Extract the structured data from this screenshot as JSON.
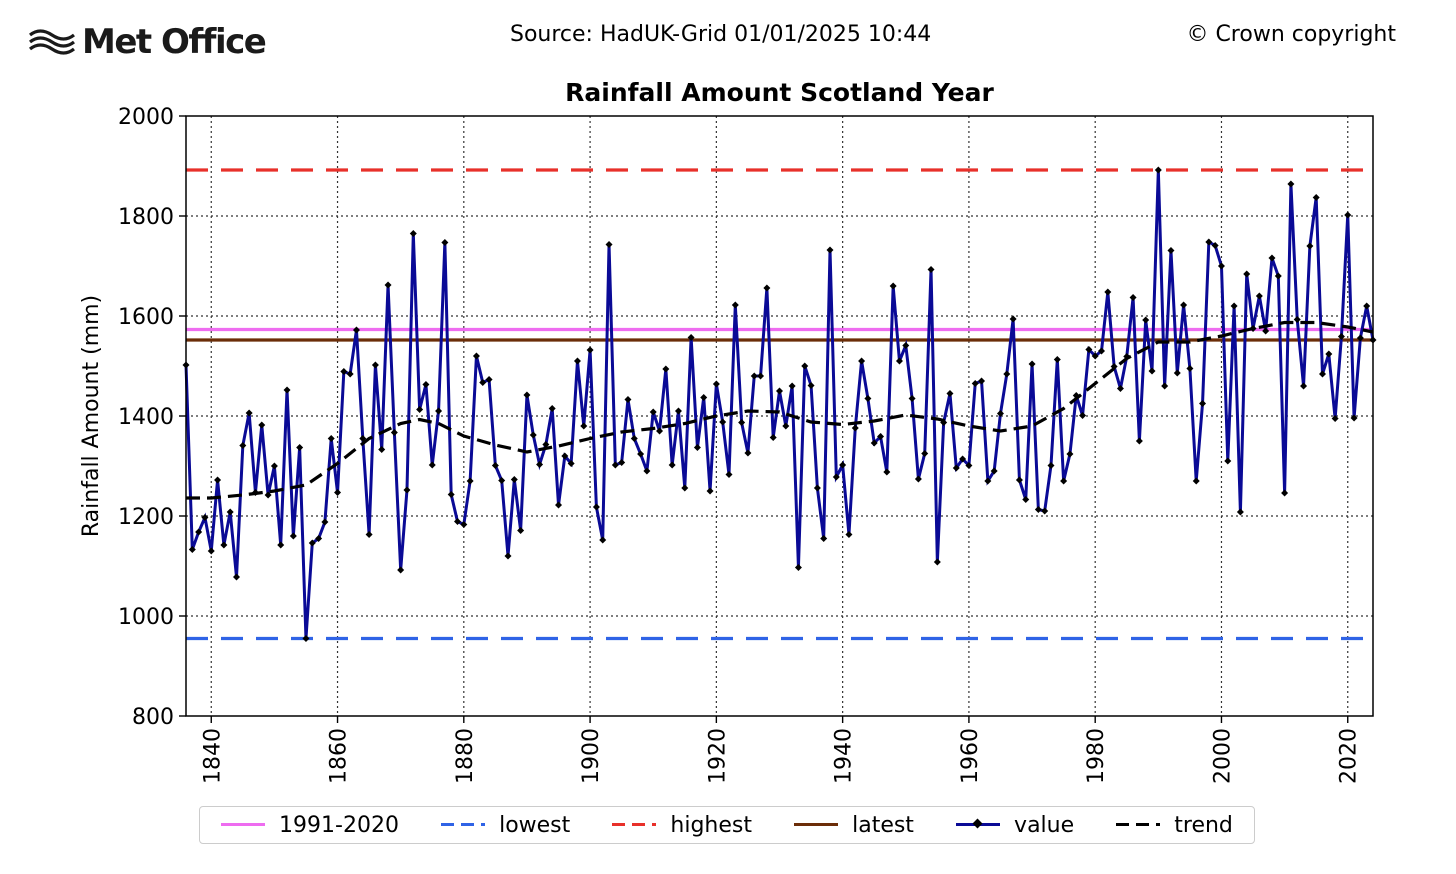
{
  "header": {
    "logo_text": "Met Office",
    "source": "Source: HadUK-Grid 01/01/2025 10:44",
    "copyright": "© Crown copyright"
  },
  "chart_data": {
    "type": "line",
    "title": "Rainfall Amount Scotland Year",
    "xlabel": "",
    "ylabel": "Rainfall Amount (mm)",
    "xlim": [
      1836,
      2024
    ],
    "ylim": [
      800,
      2000
    ],
    "xticks": [
      "1840",
      "1860",
      "1880",
      "1900",
      "1920",
      "1940",
      "1960",
      "1980",
      "2000",
      "2020"
    ],
    "yticks": [
      "800",
      "1000",
      "1200",
      "1400",
      "1600",
      "1800",
      "2000"
    ],
    "grid": true,
    "legend_position": "bottom",
    "reference_lines": [
      {
        "name": "1991-2020",
        "value": 1573,
        "color": "#ee6cf0",
        "style": "solid"
      },
      {
        "name": "lowest",
        "value": 955,
        "color": "#2f63e6",
        "style": "dashed"
      },
      {
        "name": "highest",
        "value": 1892,
        "color": "#e8302a",
        "style": "dashed"
      },
      {
        "name": "latest",
        "value": 1552,
        "color": "#6b2d08",
        "style": "solid"
      }
    ],
    "series": [
      {
        "name": "value",
        "color": "#0a0a96",
        "x": [
          1836,
          1837,
          1838,
          1839,
          1840,
          1841,
          1842,
          1843,
          1844,
          1845,
          1846,
          1847,
          1848,
          1849,
          1850,
          1851,
          1852,
          1853,
          1854,
          1855,
          1856,
          1857,
          1858,
          1859,
          1860,
          1861,
          1862,
          1863,
          1864,
          1865,
          1866,
          1867,
          1868,
          1869,
          1870,
          1871,
          1872,
          1873,
          1874,
          1875,
          1876,
          1877,
          1878,
          1879,
          1880,
          1881,
          1882,
          1883,
          1884,
          1885,
          1886,
          1887,
          1888,
          1889,
          1890,
          1891,
          1892,
          1893,
          1894,
          1895,
          1896,
          1897,
          1898,
          1899,
          1900,
          1901,
          1902,
          1903,
          1904,
          1905,
          1906,
          1907,
          1908,
          1909,
          1910,
          1911,
          1912,
          1913,
          1914,
          1915,
          1916,
          1917,
          1918,
          1919,
          1920,
          1921,
          1922,
          1923,
          1924,
          1925,
          1926,
          1927,
          1928,
          1929,
          1930,
          1931,
          1932,
          1933,
          1934,
          1935,
          1936,
          1937,
          1938,
          1939,
          1940,
          1941,
          1942,
          1943,
          1944,
          1945,
          1946,
          1947,
          1948,
          1949,
          1950,
          1951,
          1952,
          1953,
          1954,
          1955,
          1956,
          1957,
          1958,
          1959,
          1960,
          1961,
          1962,
          1963,
          1964,
          1965,
          1966,
          1967,
          1968,
          1969,
          1970,
          1971,
          1972,
          1973,
          1974,
          1975,
          1976,
          1977,
          1978,
          1979,
          1980,
          1981,
          1982,
          1983,
          1984,
          1985,
          1986,
          1987,
          1988,
          1989,
          1990,
          1991,
          1992,
          1993,
          1994,
          1995,
          1996,
          1997,
          1998,
          1999,
          2000,
          2001,
          2002,
          2003,
          2004,
          2005,
          2006,
          2007,
          2008,
          2009,
          2010,
          2011,
          2012,
          2013,
          2014,
          2015,
          2016,
          2017,
          2018,
          2019,
          2020,
          2021,
          2022,
          2023,
          2024
        ],
        "values": [
          1502,
          1133,
          1168,
          1197,
          1130,
          1272,
          1142,
          1208,
          1078,
          1341,
          1406,
          1247,
          1382,
          1242,
          1300,
          1142,
          1452,
          1160,
          1337,
          955,
          1146,
          1155,
          1188,
          1355,
          1247,
          1489,
          1484,
          1572,
          1355,
          1163,
          1502,
          1333,
          1662,
          1367,
          1092,
          1252,
          1765,
          1413,
          1463,
          1302,
          1410,
          1747,
          1243,
          1189,
          1183,
          1270,
          1520,
          1467,
          1473,
          1301,
          1271,
          1120,
          1273,
          1171,
          1442,
          1362,
          1303,
          1343,
          1415,
          1222,
          1320,
          1305,
          1510,
          1380,
          1532,
          1218,
          1152,
          1743,
          1302,
          1307,
          1433,
          1355,
          1324,
          1290,
          1408,
          1370,
          1494,
          1302,
          1410,
          1256,
          1557,
          1337,
          1437,
          1250,
          1464,
          1388,
          1283,
          1622,
          1387,
          1326,
          1480,
          1480,
          1656,
          1357,
          1450,
          1380,
          1460,
          1097,
          1500,
          1461,
          1256,
          1155,
          1732,
          1278,
          1302,
          1163,
          1376,
          1510,
          1435,
          1346,
          1359,
          1288,
          1660,
          1510,
          1541,
          1435,
          1274,
          1325,
          1693,
          1108,
          1387,
          1445,
          1296,
          1314,
          1301,
          1465,
          1470,
          1270,
          1290,
          1405,
          1484,
          1594,
          1272,
          1233,
          1504,
          1213,
          1210,
          1301,
          1513,
          1270,
          1324,
          1441,
          1401,
          1533,
          1520,
          1530,
          1648,
          1499,
          1455,
          1519,
          1637,
          1350,
          1592,
          1490,
          1892,
          1460,
          1731,
          1486,
          1622,
          1495,
          1270,
          1425,
          1748,
          1741,
          1700,
          1310,
          1620,
          1208,
          1684,
          1575,
          1640,
          1570,
          1716,
          1680,
          1246,
          1864,
          1593,
          1460,
          1740,
          1837,
          1484,
          1524,
          1395,
          1559,
          1802,
          1396,
          1556,
          1620,
          1552
        ]
      },
      {
        "name": "trend",
        "color": "#000000",
        "x": [
          1836,
          1840,
          1845,
          1850,
          1855,
          1860,
          1865,
          1870,
          1873,
          1876,
          1880,
          1885,
          1890,
          1895,
          1900,
          1905,
          1910,
          1915,
          1920,
          1925,
          1930,
          1935,
          1940,
          1945,
          1950,
          1955,
          1960,
          1965,
          1970,
          1975,
          1980,
          1985,
          1990,
          1995,
          2000,
          2005,
          2010,
          2015,
          2020,
          2024
        ],
        "values": [
          1236,
          1236,
          1242,
          1250,
          1262,
          1305,
          1355,
          1385,
          1393,
          1385,
          1360,
          1342,
          1328,
          1340,
          1355,
          1368,
          1375,
          1385,
          1400,
          1410,
          1408,
          1388,
          1383,
          1390,
          1402,
          1394,
          1380,
          1370,
          1380,
          1415,
          1465,
          1515,
          1548,
          1548,
          1560,
          1575,
          1587,
          1587,
          1578,
          1568
        ]
      }
    ]
  },
  "legend": [
    {
      "label": "1991-2020",
      "color": "#ee6cf0",
      "style": "solid"
    },
    {
      "label": "lowest",
      "color": "#2f63e6",
      "style": "dashed"
    },
    {
      "label": "highest",
      "color": "#e8302a",
      "style": "dashed"
    },
    {
      "label": "latest",
      "color": "#6b2d08",
      "style": "solid"
    },
    {
      "label": "value",
      "color": "#0a0a96",
      "style": "marker"
    },
    {
      "label": "trend",
      "color": "#000000",
      "style": "dashed"
    }
  ]
}
